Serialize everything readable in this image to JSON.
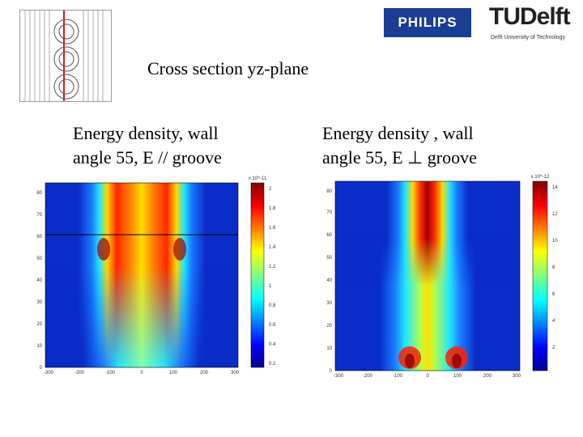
{
  "header": {
    "philips_logo_text": "PHILIPS",
    "tudelft_logo_text": "TUDelft",
    "tudelft_subtitle": "Delft University of Technology"
  },
  "slide": {
    "section_title": "Cross section yz-plane"
  },
  "plots": [
    {
      "caption_line1": "Energy density, wall",
      "caption_line2": "angle 55,  E // groove",
      "y_ticks": [
        "0",
        "10",
        "20",
        "30",
        "40",
        "50",
        "60",
        "70",
        "80"
      ],
      "x_ticks": [
        "-300",
        "-200",
        "-100",
        "0",
        "100",
        "200",
        "300"
      ],
      "colorbar_ticks": [
        "2",
        "1.8",
        "1.6",
        "1.4",
        "1.2",
        "1",
        "0.8",
        "0.6",
        "0.4",
        "0.2"
      ],
      "colorbar_exponent": "x 10^-11"
    },
    {
      "caption_line1": "Energy density , wall",
      "caption_line2": "angle 55, E ⊥ groove",
      "y_ticks": [
        "0",
        "10",
        "20",
        "30",
        "40",
        "50",
        "60",
        "70",
        "80"
      ],
      "x_ticks": [
        "-300",
        "-200",
        "-100",
        "0",
        "100",
        "200",
        "300"
      ],
      "colorbar_ticks": [
        "14",
        "12",
        "10",
        "8",
        "6",
        "4",
        "2"
      ],
      "colorbar_exponent": "x 10^-12"
    }
  ],
  "colors": {
    "philips_blue": "#1a3e95",
    "tudelft_cyan": "#00a6d6",
    "section_line_red": "#d22020"
  }
}
